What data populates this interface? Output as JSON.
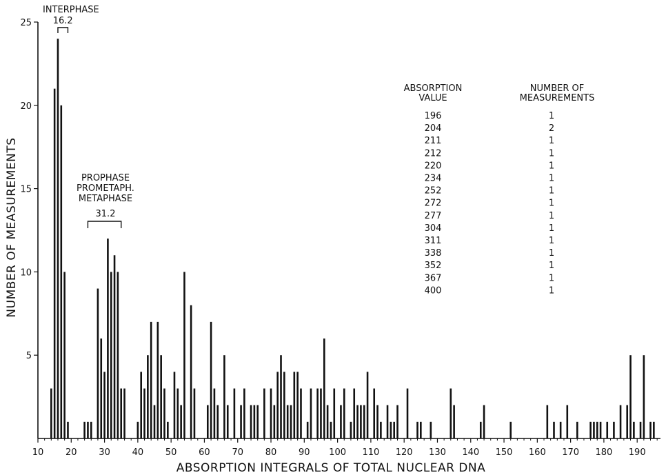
{
  "chart_data": {
    "type": "bar",
    "xlabel": "ABSORPTION INTEGRALS OF TOTAL NUCLEAR DNA",
    "ylabel": "NUMBER OF MEASUREMENTS",
    "xlim": [
      10,
      197
    ],
    "ylim": [
      0,
      25
    ],
    "xticks": [
      10,
      20,
      30,
      40,
      50,
      60,
      70,
      80,
      90,
      100,
      110,
      120,
      130,
      140,
      150,
      160,
      170,
      180,
      190
    ],
    "yticks": [
      5,
      10,
      15,
      20,
      25
    ],
    "x": [
      14,
      15,
      16,
      17,
      18,
      19,
      24,
      25,
      26,
      28,
      29,
      30,
      31,
      32,
      33,
      34,
      35,
      36,
      40,
      41,
      42,
      43,
      44,
      45,
      46,
      47,
      48,
      49,
      51,
      52,
      53,
      54,
      56,
      57,
      61,
      62,
      63,
      64,
      66,
      67,
      69,
      71,
      72,
      74,
      75,
      76,
      78,
      80,
      81,
      82,
      83,
      84,
      85,
      86,
      87,
      88,
      89,
      91,
      92,
      94,
      95,
      96,
      97,
      98,
      99,
      101,
      102,
      104,
      105,
      106,
      107,
      108,
      109,
      111,
      112,
      113,
      115,
      116,
      117,
      118,
      121,
      124,
      125,
      128,
      134,
      135,
      143,
      144,
      152,
      163,
      165,
      167,
      169,
      172,
      176,
      177,
      178,
      179,
      181,
      183,
      185,
      187,
      188,
      189,
      191,
      192,
      194,
      195
    ],
    "values": [
      3,
      21,
      24,
      20,
      10,
      1,
      1,
      1,
      1,
      9,
      6,
      4,
      12,
      10,
      11,
      10,
      3,
      3,
      1,
      4,
      3,
      5,
      7,
      2,
      7,
      5,
      3,
      1,
      4,
      3,
      2,
      10,
      8,
      3,
      2,
      7,
      3,
      2,
      5,
      2,
      3,
      2,
      3,
      2,
      2,
      2,
      3,
      3,
      2,
      4,
      5,
      4,
      2,
      2,
      4,
      4,
      3,
      1,
      3,
      3,
      3,
      6,
      2,
      1,
      3,
      2,
      3,
      1,
      3,
      2,
      2,
      2,
      4,
      3,
      2,
      1,
      2,
      1,
      1,
      2,
      3,
      1,
      1,
      1,
      3,
      2,
      1,
      2,
      1,
      2,
      1,
      1,
      2,
      1,
      1,
      1,
      1,
      1,
      1,
      1,
      2,
      2,
      5,
      1,
      1,
      5,
      1,
      1
    ],
    "annotations": [
      {
        "label": "INTERPHASE",
        "value": "16.2",
        "range": [
          16,
          19
        ]
      },
      {
        "lines": [
          "PROPHASE",
          "PROMETAPH.",
          "METAPHASE"
        ],
        "value": "31.2",
        "range": [
          25,
          35
        ]
      }
    ],
    "table": {
      "headers": [
        [
          "ABSORPTION",
          "VALUE"
        ],
        [
          "NUMBER OF",
          "MEASUREMENTS"
        ]
      ],
      "rows": [
        [
          "196",
          "1"
        ],
        [
          "204",
          "2"
        ],
        [
          "211",
          "1"
        ],
        [
          "212",
          "1"
        ],
        [
          "220",
          "1"
        ],
        [
          "234",
          "1"
        ],
        [
          "252",
          "1"
        ],
        [
          "272",
          "1"
        ],
        [
          "277",
          "1"
        ],
        [
          "304",
          "1"
        ],
        [
          "311",
          "1"
        ],
        [
          "338",
          "1"
        ],
        [
          "352",
          "1"
        ],
        [
          "367",
          "1"
        ],
        [
          "400",
          "1"
        ]
      ]
    }
  }
}
